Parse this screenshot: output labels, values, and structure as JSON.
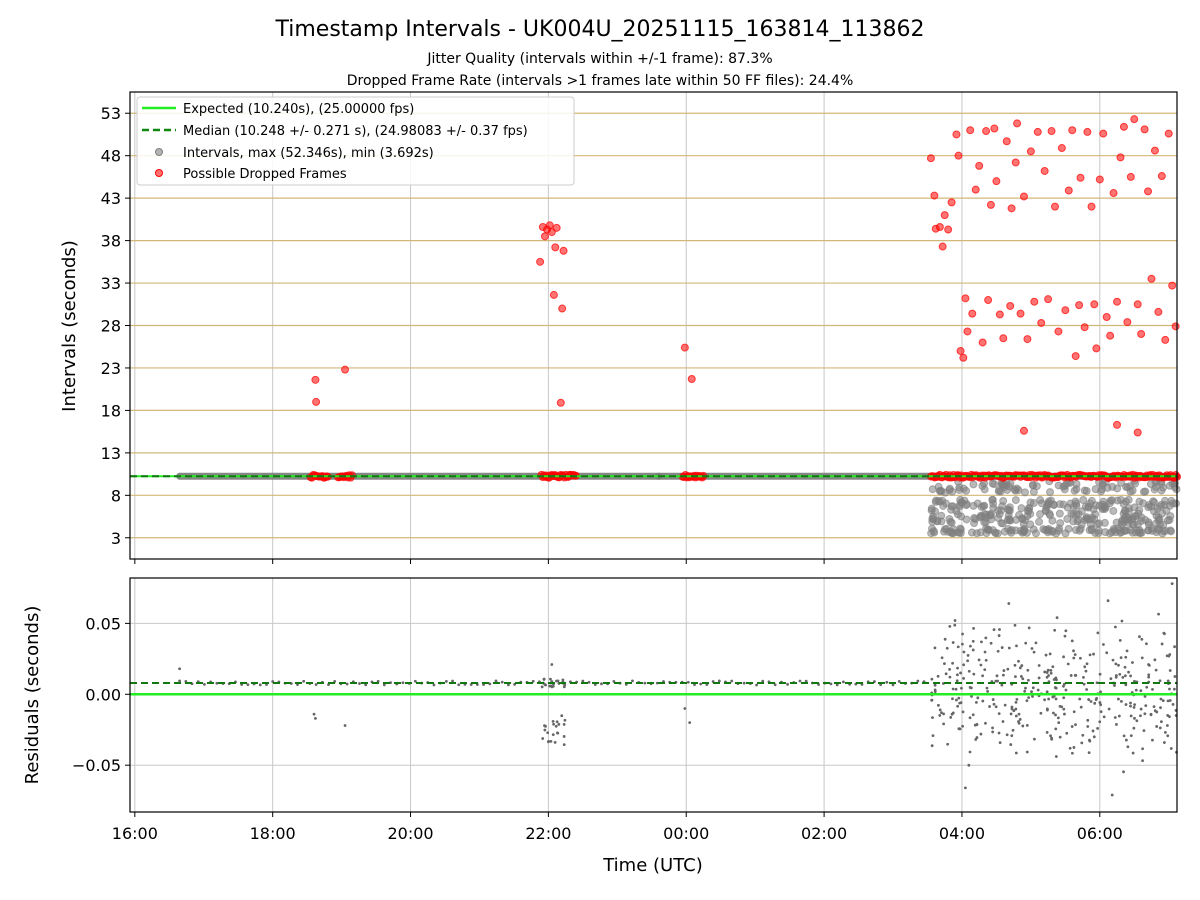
{
  "chart_data": [
    {
      "type": "scatter",
      "title": "Timestamp Intervals - UK004U_20251115_163814_113862",
      "subtitle_lines": [
        "Jitter Quality (intervals within +/-1 frame): 87.3%",
        "Dropped Frame Rate (intervals >1 frames late within 50 FF files): 24.4%"
      ],
      "xlabel": "",
      "ylabel": "Intervals (seconds)",
      "xlim_hours": [
        15.93,
        31.12
      ],
      "ylim": [
        0.5,
        55.5
      ],
      "yticks": [
        3,
        8,
        13,
        18,
        23,
        28,
        33,
        38,
        43,
        48,
        53
      ],
      "grid": true,
      "legend_location": "upper-left",
      "legend": [
        "Expected (10.240s), (25.00000 fps)",
        "Median (10.248 +/- 0.271 s), (24.98083 +/- 0.37 fps)",
        "Intervals, max (52.346s), min (3.692s)",
        "Possible Dropped Frames"
      ],
      "expected_interval": 10.24,
      "median_interval": 10.248,
      "series": [
        {
          "name": "Intervals (regular)",
          "segments": [
            [
              16.65,
              23.6,
              10.24
            ],
            [
              23.6,
              31.12,
              10.24
            ]
          ]
        },
        {
          "name": "Possible Dropped Frames",
          "points": [
            [
              18.62,
              21.6
            ],
            [
              18.63,
              19.0
            ],
            [
              19.05,
              22.8
            ],
            [
              21.88,
              35.5
            ],
            [
              21.92,
              39.6
            ],
            [
              21.95,
              38.5
            ],
            [
              21.98,
              39.3
            ],
            [
              22.02,
              39.8
            ],
            [
              22.05,
              39.0
            ],
            [
              22.08,
              31.6
            ],
            [
              22.1,
              37.2
            ],
            [
              22.12,
              39.5
            ],
            [
              22.18,
              18.9
            ],
            [
              22.2,
              30.0
            ],
            [
              22.22,
              36.8
            ],
            [
              23.98,
              25.4
            ],
            [
              24.08,
              21.7
            ],
            [
              27.55,
              47.7
            ],
            [
              27.6,
              43.3
            ],
            [
              27.62,
              39.4
            ],
            [
              27.68,
              39.6
            ],
            [
              27.72,
              37.3
            ],
            [
              27.75,
              41.0
            ],
            [
              27.8,
              39.3
            ],
            [
              27.85,
              42.5
            ],
            [
              27.92,
              50.5
            ],
            [
              27.95,
              48.0
            ],
            [
              27.98,
              25.0
            ],
            [
              28.02,
              24.2
            ],
            [
              28.05,
              31.2
            ],
            [
              28.08,
              27.3
            ],
            [
              28.12,
              51.0
            ],
            [
              28.15,
              29.4
            ],
            [
              28.2,
              44.0
            ],
            [
              28.25,
              46.8
            ],
            [
              28.3,
              26.0
            ],
            [
              28.35,
              50.9
            ],
            [
              28.38,
              31.0
            ],
            [
              28.42,
              42.2
            ],
            [
              28.47,
              51.2
            ],
            [
              28.5,
              45.0
            ],
            [
              28.55,
              29.3
            ],
            [
              28.6,
              26.5
            ],
            [
              28.65,
              49.7
            ],
            [
              28.7,
              30.3
            ],
            [
              28.72,
              41.8
            ],
            [
              28.78,
              47.2
            ],
            [
              28.8,
              51.8
            ],
            [
              28.85,
              29.4
            ],
            [
              28.9,
              43.2
            ],
            [
              28.95,
              26.4
            ],
            [
              29.0,
              48.5
            ],
            [
              29.05,
              30.8
            ],
            [
              29.1,
              50.8
            ],
            [
              29.15,
              28.3
            ],
            [
              29.2,
              46.2
            ],
            [
              29.25,
              31.1
            ],
            [
              29.3,
              50.9
            ],
            [
              29.35,
              42.0
            ],
            [
              29.4,
              27.3
            ],
            [
              29.45,
              48.9
            ],
            [
              29.5,
              29.8
            ],
            [
              29.55,
              43.9
            ],
            [
              29.6,
              51.0
            ],
            [
              29.65,
              24.4
            ],
            [
              29.7,
              30.4
            ],
            [
              29.72,
              45.4
            ],
            [
              29.78,
              27.8
            ],
            [
              29.82,
              50.8
            ],
            [
              29.88,
              42.0
            ],
            [
              29.92,
              30.5
            ],
            [
              29.95,
              25.3
            ],
            [
              30.0,
              45.2
            ],
            [
              30.05,
              50.6
            ],
            [
              30.1,
              29.0
            ],
            [
              30.15,
              26.8
            ],
            [
              30.2,
              43.6
            ],
            [
              30.25,
              30.8
            ],
            [
              30.3,
              47.8
            ],
            [
              30.35,
              51.4
            ],
            [
              30.4,
              28.4
            ],
            [
              30.45,
              45.5
            ],
            [
              30.5,
              52.3
            ],
            [
              30.55,
              30.5
            ],
            [
              30.6,
              27.0
            ],
            [
              30.65,
              51.1
            ],
            [
              30.7,
              43.8
            ],
            [
              30.75,
              33.5
            ],
            [
              30.8,
              48.6
            ],
            [
              30.85,
              29.6
            ],
            [
              30.9,
              45.6
            ],
            [
              30.95,
              26.3
            ],
            [
              31.0,
              50.6
            ],
            [
              31.05,
              32.7
            ],
            [
              31.1,
              27.9
            ],
            [
              30.25,
              16.3
            ],
            [
              30.55,
              15.4
            ],
            [
              28.9,
              15.6
            ]
          ],
          "band_hours": [
            [
              18.55,
              18.8,
              10.24
            ],
            [
              18.95,
              19.15,
              10.24
            ],
            [
              21.9,
              22.4,
              10.24
            ],
            [
              23.95,
              24.25,
              10.24
            ],
            [
              27.55,
              31.12,
              10.24
            ]
          ]
        },
        {
          "name": "Intervals (short, grey)",
          "band": [
            27.55,
            31.12
          ],
          "levels": [
            3.8,
            5.2,
            6.8,
            9.0
          ]
        }
      ]
    },
    {
      "type": "scatter",
      "xlabel": "Time (UTC)",
      "ylabel": "Residuals (seconds)",
      "xlim_hours": [
        15.93,
        31.12
      ],
      "ylim": [
        -0.083,
        0.082
      ],
      "yticks": [
        0.05,
        0.0,
        -0.05
      ],
      "ytick_labels": [
        "0.05",
        "0.00",
        "−0.05"
      ],
      "xticks_hours": [
        16,
        18,
        20,
        22,
        24,
        26,
        28,
        30
      ],
      "xtick_labels": [
        "16:00",
        "18:00",
        "20:00",
        "22:00",
        "00:00",
        "02:00",
        "04:00",
        "06:00"
      ],
      "grid": true,
      "expected_residual": 0.0,
      "median_residual": 0.008,
      "max_residual": 0.078,
      "min_residual": -0.071
    }
  ]
}
